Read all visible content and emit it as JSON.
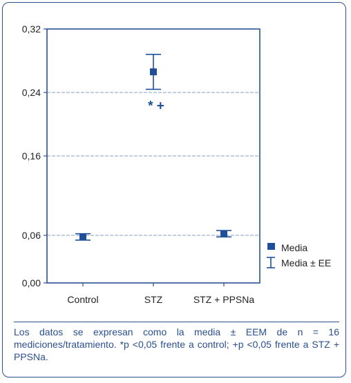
{
  "chart_data": {
    "type": "scatter",
    "categories": [
      "Control",
      "STZ",
      "STZ + PPSNa"
    ],
    "series": [
      {
        "name": "Media",
        "values": [
          0.058,
          0.266,
          0.062
        ],
        "error_low": [
          0.054,
          0.244,
          0.058
        ],
        "error_high": [
          0.062,
          0.288,
          0.066
        ]
      }
    ],
    "yticks": [
      0.0,
      0.06,
      0.16,
      0.24,
      0.32
    ],
    "ytick_labels": [
      "0,00",
      "0,06",
      "0,16",
      "0,24",
      "0,32"
    ],
    "ylim": [
      0,
      0.32
    ],
    "grid": "horizontal dashed",
    "legend": [
      {
        "marker": "square",
        "label": "Media"
      },
      {
        "marker": "errorbar",
        "label": "Media ± EE"
      }
    ],
    "legend_position": "right",
    "annotations": [
      {
        "category": "STZ",
        "value": 0.218,
        "text": "* +"
      }
    ],
    "colors": {
      "marker": "#1f4f9a",
      "axis": "#2a4f8f",
      "grid": "#9fb0d0"
    }
  },
  "caption": "Los datos se expresan como la media ± EEM de n = 16 mediciones/tratamiento. *p <0,05 frente a control; +p <0,05 frente a STZ + PPSNa."
}
